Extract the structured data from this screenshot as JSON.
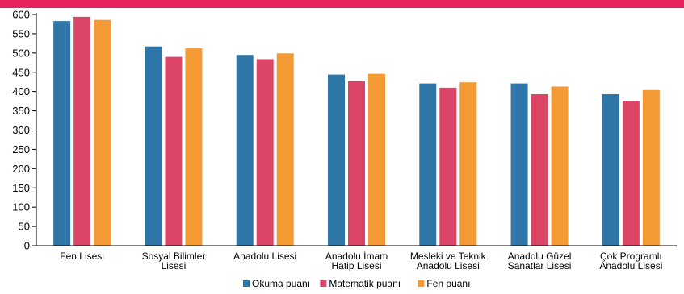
{
  "theme": {
    "top_band_color": "#e8245f",
    "axis_color": "#000000",
    "grid_color": "#d9d9d9"
  },
  "chart_data": {
    "type": "bar",
    "title": "",
    "xlabel": "",
    "ylabel": "",
    "ylim": [
      0,
      600
    ],
    "yticks": [
      0,
      50,
      100,
      150,
      200,
      250,
      300,
      350,
      400,
      450,
      500,
      550,
      600
    ],
    "grid": false,
    "legend_position": "bottom",
    "categories": [
      [
        "Fen Lisesi"
      ],
      [
        "Sosyal Bilimler",
        "Lisesi"
      ],
      [
        "Anadolu Lisesi"
      ],
      [
        "Anadolu İmam",
        "Hatip Lisesi"
      ],
      [
        "Mesleki ve Teknik",
        "Anadolu Lisesi"
      ],
      [
        "Anadolu Güzel",
        "Sanatlar Lisesi"
      ],
      [
        "Çok Programlı",
        "Anadolu Lisesi"
      ]
    ],
    "series": [
      {
        "name": "Okuma puanı",
        "color": "#2e75a8",
        "values": [
          583,
          517,
          495,
          444,
          421,
          421,
          393
        ]
      },
      {
        "name": "Matematik puanı",
        "color": "#dc4565",
        "values": [
          594,
          490,
          484,
          427,
          410,
          393,
          376
        ]
      },
      {
        "name": "Fen puanı",
        "color": "#f39a35",
        "values": [
          586,
          512,
          499,
          446,
          424,
          413,
          404
        ]
      }
    ]
  }
}
